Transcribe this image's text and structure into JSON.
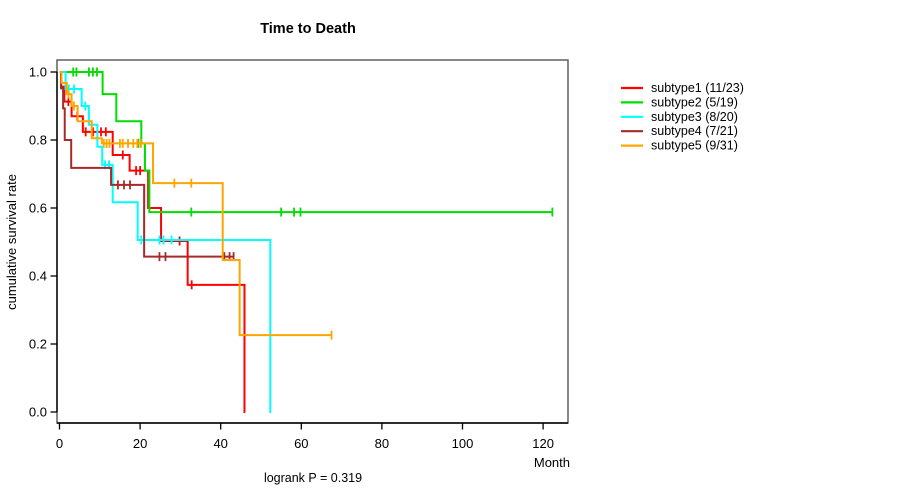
{
  "chart_data": {
    "type": "line",
    "variant": "kaplan-meier-survival",
    "title": "Time to Death",
    "xlabel": "Month",
    "ylabel": "cumulative survival rate",
    "annotation": "logrank P = 0.319",
    "xlim": [
      0,
      126
    ],
    "ylim": [
      0.0,
      1.0
    ],
    "grid": false,
    "legend_position": "right-outside",
    "frame_color": "#545454",
    "xticks": [
      {
        "v": 0,
        "label": "0"
      },
      {
        "v": 20,
        "label": "20"
      },
      {
        "v": 40,
        "label": "40"
      },
      {
        "v": 60,
        "label": "60"
      },
      {
        "v": 80,
        "label": "80"
      },
      {
        "v": 100,
        "label": "100"
      },
      {
        "v": 120,
        "label": "120"
      }
    ],
    "yticks": [
      {
        "v": 0.0,
        "label": "0.0"
      },
      {
        "v": 0.2,
        "label": "0.2"
      },
      {
        "v": 0.4,
        "label": "0.4"
      },
      {
        "v": 0.6,
        "label": "0.6"
      },
      {
        "v": 0.8,
        "label": "0.8"
      },
      {
        "v": 1.0,
        "label": "1.0"
      }
    ],
    "series": [
      {
        "name": "subtype1 (11/23)",
        "color": "#ff0000",
        "steps": [
          [
            0,
            1.0
          ],
          [
            0.4,
            0.957
          ],
          [
            1.2,
            0.913
          ],
          [
            3.0,
            0.87
          ],
          [
            5.8,
            0.824
          ],
          [
            13.2,
            0.756
          ],
          [
            17.4,
            0.71
          ],
          [
            22.0,
            0.6
          ],
          [
            25.2,
            0.503
          ],
          [
            31.8,
            0.374
          ],
          [
            45.9,
            0.0
          ]
        ],
        "end": 46.1,
        "censors": [
          [
            2.2,
            0.913
          ],
          [
            4.4,
            0.87
          ],
          [
            6.5,
            0.824
          ],
          [
            8.3,
            0.824
          ],
          [
            10.3,
            0.824
          ],
          [
            11.5,
            0.824
          ],
          [
            15.7,
            0.756
          ],
          [
            19.0,
            0.71
          ],
          [
            20.0,
            0.71
          ],
          [
            29.8,
            0.503
          ],
          [
            32.8,
            0.374
          ]
        ]
      },
      {
        "name": "subtype2 (5/19)",
        "color": "#00dd00",
        "steps": [
          [
            0,
            1.0
          ],
          [
            10.7,
            0.935
          ],
          [
            14.1,
            0.855
          ],
          [
            20.3,
            0.79
          ],
          [
            21.2,
            0.71
          ],
          [
            22.3,
            0.588
          ]
        ],
        "end": 122.3,
        "censors": [
          [
            3.4,
            1.0
          ],
          [
            4.2,
            1.0
          ],
          [
            7.3,
            1.0
          ],
          [
            8.3,
            1.0
          ],
          [
            9.3,
            1.0
          ],
          [
            19.6,
            0.79
          ],
          [
            32.7,
            0.588
          ],
          [
            55.0,
            0.588
          ],
          [
            58.2,
            0.588
          ],
          [
            59.8,
            0.588
          ],
          [
            122.3,
            0.588
          ]
        ]
      },
      {
        "name": "subtype3 (8/20)",
        "color": "#00ffff",
        "steps": [
          [
            0,
            1.0
          ],
          [
            1.5,
            0.95
          ],
          [
            5.5,
            0.9
          ],
          [
            7.3,
            0.845
          ],
          [
            9.4,
            0.78
          ],
          [
            10.6,
            0.727
          ],
          [
            13.2,
            0.617
          ],
          [
            19.4,
            0.506
          ],
          [
            52.3,
            0.0
          ]
        ],
        "end": 52.5,
        "censors": [
          [
            2.3,
            0.95
          ],
          [
            3.6,
            0.95
          ],
          [
            6.4,
            0.9
          ],
          [
            11.3,
            0.727
          ],
          [
            12.3,
            0.727
          ],
          [
            20.3,
            0.506
          ],
          [
            24.8,
            0.506
          ],
          [
            25.8,
            0.506
          ],
          [
            27.8,
            0.506
          ]
        ]
      },
      {
        "name": "subtype4 (7/21)",
        "color": "#a52a2a",
        "steps": [
          [
            0,
            1.0
          ],
          [
            0.4,
            0.952
          ],
          [
            0.9,
            0.893
          ],
          [
            1.3,
            0.8
          ],
          [
            2.9,
            0.718
          ],
          [
            12.8,
            0.668
          ],
          [
            21.0,
            0.457
          ]
        ],
        "end": 43.2,
        "censors": [
          [
            14.5,
            0.668
          ],
          [
            16.0,
            0.668
          ],
          [
            17.5,
            0.668
          ],
          [
            24.8,
            0.457
          ],
          [
            26.3,
            0.457
          ],
          [
            40.9,
            0.457
          ],
          [
            42.2,
            0.457
          ],
          [
            43.2,
            0.457
          ]
        ]
      },
      {
        "name": "subtype5 (9/31)",
        "color": "#ffa500",
        "steps": [
          [
            0,
            1.0
          ],
          [
            0.5,
            0.968
          ],
          [
            1.8,
            0.935
          ],
          [
            3.0,
            0.9
          ],
          [
            4.5,
            0.855
          ],
          [
            8.0,
            0.805
          ],
          [
            10.5,
            0.79
          ],
          [
            23.2,
            0.673
          ],
          [
            40.5,
            0.447
          ],
          [
            44.7,
            0.226
          ]
        ],
        "end": 67.5,
        "censors": [
          [
            2.2,
            0.935
          ],
          [
            3.6,
            0.9
          ],
          [
            11.0,
            0.79
          ],
          [
            11.7,
            0.79
          ],
          [
            12.4,
            0.79
          ],
          [
            15.0,
            0.79
          ],
          [
            15.7,
            0.79
          ],
          [
            17.0,
            0.79
          ],
          [
            18.3,
            0.79
          ],
          [
            19.3,
            0.79
          ],
          [
            20.2,
            0.79
          ],
          [
            28.5,
            0.673
          ],
          [
            32.7,
            0.673
          ],
          [
            67.5,
            0.226
          ]
        ]
      }
    ]
  }
}
